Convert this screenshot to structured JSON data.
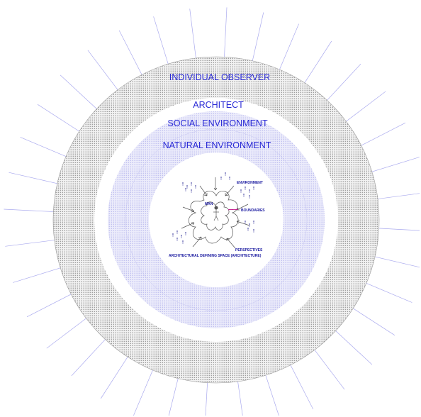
{
  "rings": {
    "outer": "INDIVIDUAL OBSERVER",
    "architect": "ARCHITECT",
    "social": "SOCIAL ENVIRONMENT",
    "natural": "NATURAL ENVIRONMENT"
  },
  "inner": {
    "environment": "ENVIRONMENT",
    "man": "MAN",
    "boundaries": "BOUNDARIES",
    "perspectives": "PERSPECTIVES",
    "space": "ARCHITECTURAL DEFINING SPACE (ARCHITECTURE)"
  },
  "colors": {
    "outer_ring": "#7a7a7a",
    "blue_ring": "#b8b8f2",
    "rays": "#a9a9ee",
    "label": "#2a2ad6",
    "boundary_accent": "#c2188a"
  }
}
